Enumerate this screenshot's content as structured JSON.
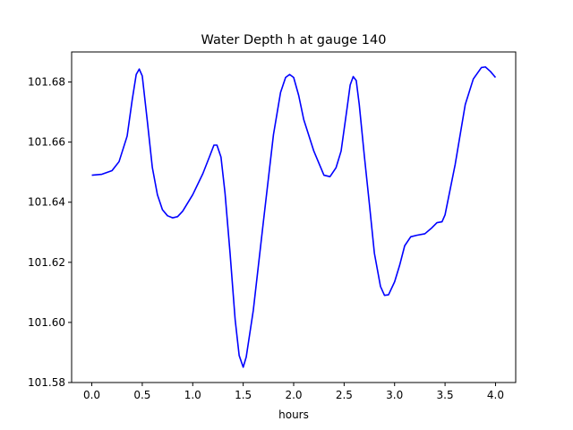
{
  "chart_data": {
    "type": "line",
    "title": "Water Depth h at gauge 140",
    "xlabel": "hours",
    "ylabel": "",
    "xlim": [
      -0.2,
      4.2
    ],
    "ylim": [
      101.58,
      101.69
    ],
    "xticks": [
      0.0,
      0.5,
      1.0,
      1.5,
      2.0,
      2.5,
      3.0,
      3.5,
      4.0
    ],
    "xtick_labels": [
      "0.0",
      "0.5",
      "1.0",
      "1.5",
      "2.0",
      "2.5",
      "3.0",
      "3.5",
      "4.0"
    ],
    "yticks": [
      101.58,
      101.6,
      101.62,
      101.64,
      101.66,
      101.68
    ],
    "ytick_labels": [
      "101.58",
      "101.60",
      "101.62",
      "101.64",
      "101.66",
      "101.68"
    ],
    "grid": false,
    "series": [
      {
        "color": "#0000ff",
        "x": [
          0.0,
          0.1,
          0.2,
          0.27,
          0.35,
          0.4,
          0.44,
          0.47,
          0.5,
          0.55,
          0.6,
          0.65,
          0.7,
          0.75,
          0.8,
          0.85,
          0.9,
          1.0,
          1.1,
          1.17,
          1.21,
          1.24,
          1.28,
          1.32,
          1.37,
          1.42,
          1.46,
          1.5,
          1.53,
          1.6,
          1.7,
          1.8,
          1.87,
          1.92,
          1.96,
          2.0,
          2.05,
          2.1,
          2.2,
          2.3,
          2.36,
          2.42,
          2.47,
          2.53,
          2.56,
          2.59,
          2.62,
          2.65,
          2.7,
          2.75,
          2.8,
          2.86,
          2.9,
          2.94,
          3.0,
          3.05,
          3.1,
          3.16,
          3.22,
          3.3,
          3.37,
          3.42,
          3.47,
          3.5,
          3.6,
          3.7,
          3.78,
          3.86,
          3.9,
          3.95,
          4.0
        ],
        "y": [
          101.649,
          101.6493,
          101.6505,
          101.6535,
          101.662,
          101.674,
          101.6825,
          101.6843,
          101.682,
          101.667,
          101.6515,
          101.6425,
          101.6375,
          101.6355,
          101.6348,
          101.6352,
          101.637,
          101.6425,
          101.6495,
          101.6555,
          101.659,
          101.659,
          101.655,
          101.643,
          101.623,
          101.601,
          101.589,
          101.5851,
          101.5885,
          101.604,
          101.6335,
          101.6625,
          101.6765,
          101.6815,
          101.6825,
          101.6815,
          101.6755,
          101.6675,
          101.657,
          101.649,
          101.6485,
          101.6515,
          101.657,
          101.6715,
          101.679,
          101.6818,
          101.6805,
          101.6725,
          101.6555,
          101.6395,
          101.623,
          101.612,
          101.609,
          101.6092,
          101.6135,
          101.619,
          101.6255,
          101.6285,
          101.629,
          101.6295,
          101.6315,
          101.6332,
          101.6335,
          101.6358,
          101.6525,
          101.6725,
          101.681,
          101.6848,
          101.685,
          101.6835,
          101.6815
        ]
      }
    ]
  }
}
